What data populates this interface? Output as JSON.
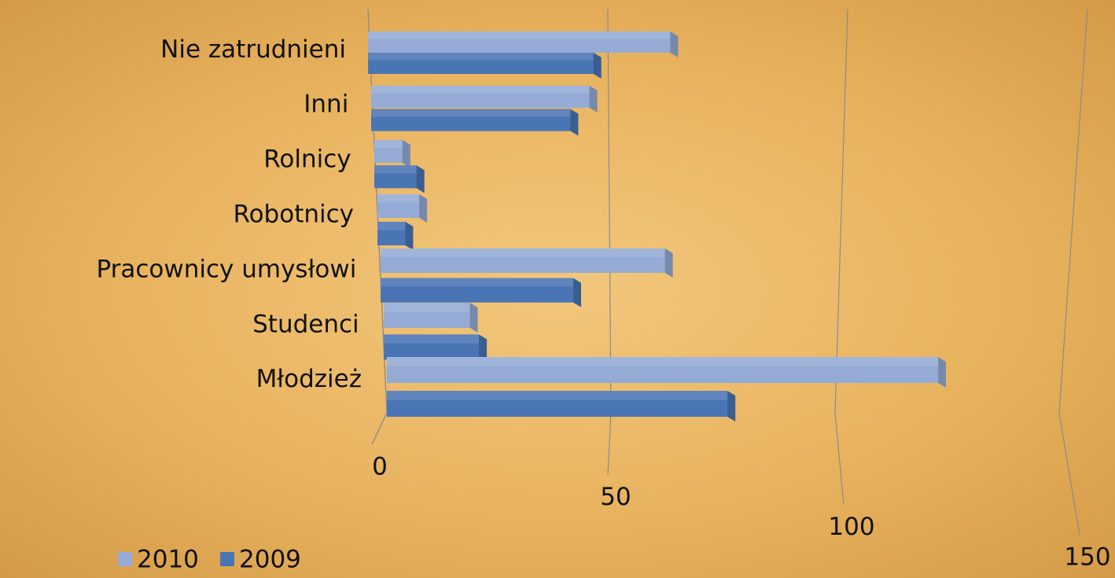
{
  "chart_data": {
    "type": "bar",
    "orientation": "horizontal",
    "categories": [
      "Nie zatrudnieni",
      "Inni",
      "Rolnicy",
      "Robotnicy",
      "Pracownicy umysłowi",
      "Studenci",
      "Młodzież"
    ],
    "series": [
      {
        "name": "2010",
        "color": "#95abd6",
        "values": [
          63,
          46,
          6,
          9,
          62,
          19,
          123
        ]
      },
      {
        "name": "2009",
        "color": "#4a75b5",
        "values": [
          47,
          42,
          9,
          6,
          42,
          21,
          76
        ]
      }
    ],
    "xlim": [
      0,
      150
    ],
    "xticks": [
      0,
      50,
      100,
      150
    ],
    "grid": true,
    "legend": "bottom-left"
  }
}
